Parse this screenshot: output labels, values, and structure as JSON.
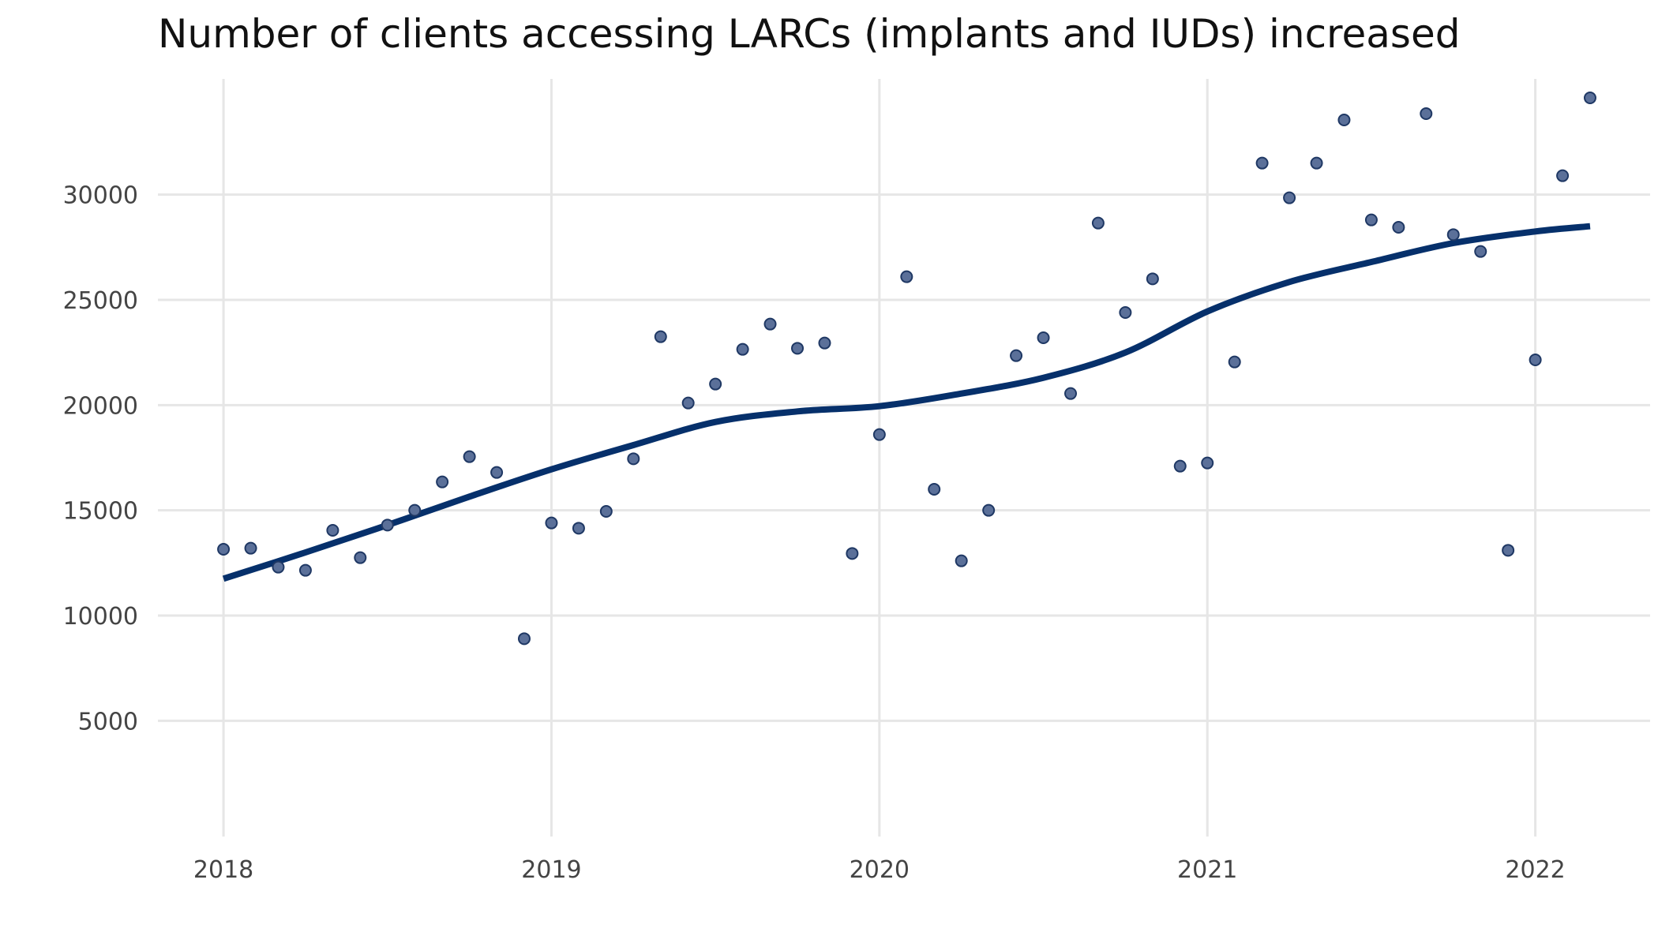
{
  "chart_data": {
    "type": "scatter",
    "title": "Number of clients accessing LARCs (implants and IUDs) increased",
    "xlabel": "",
    "ylabel": "",
    "x_unit": "year",
    "xlim": [
      2017.8,
      2022.35
    ],
    "ylim": [
      -500,
      35500
    ],
    "x_ticks": [
      2018,
      2019,
      2020,
      2021,
      2022
    ],
    "x_tick_labels": [
      "2018",
      "2019",
      "2020",
      "2021",
      "2022"
    ],
    "y_ticks": [
      5000,
      10000,
      15000,
      20000,
      25000,
      30000
    ],
    "y_tick_labels": [
      "5000",
      "10000",
      "15000",
      "20000",
      "25000",
      "30000"
    ],
    "grid": true,
    "legend": "none",
    "colors": {
      "points": "#5b7099",
      "points_outline": "#1f3864",
      "trend": "#06306b",
      "grid": "#e6e6e6"
    },
    "series": [
      {
        "type": "scatter",
        "x": [
          2018.0,
          2018.083,
          2018.167,
          2018.25,
          2018.333,
          2018.417,
          2018.5,
          2018.583,
          2018.667,
          2018.75,
          2018.833,
          2018.917,
          2019.0,
          2019.083,
          2019.167,
          2019.25,
          2019.333,
          2019.417,
          2019.5,
          2019.583,
          2019.667,
          2019.75,
          2019.833,
          2019.917,
          2020.0,
          2020.083,
          2020.167,
          2020.25,
          2020.333,
          2020.417,
          2020.5,
          2020.583,
          2020.667,
          2020.75,
          2020.833,
          2020.917,
          2021.0,
          2021.083,
          2021.167,
          2021.25,
          2021.333,
          2021.417,
          2021.5,
          2021.583,
          2021.667,
          2021.75,
          2021.833,
          2021.917,
          2022.0,
          2022.083,
          2022.167
        ],
        "y": [
          13150,
          13200,
          12300,
          12150,
          14050,
          12750,
          14300,
          15000,
          16350,
          17550,
          16800,
          8900,
          14400,
          14150,
          14950,
          17450,
          23250,
          20100,
          21000,
          22650,
          23850,
          22700,
          22950,
          12950,
          18600,
          26100,
          16000,
          12600,
          15000,
          22350,
          23200,
          20550,
          28650,
          24400,
          26000,
          17100,
          17250,
          22050,
          31500,
          29850,
          31500,
          33550,
          28800,
          28450,
          33850,
          28100,
          27300,
          13100,
          22150,
          30900,
          34600
        ]
      },
      {
        "type": "line",
        "x": [
          2018.0,
          2018.25,
          2018.5,
          2018.75,
          2019.0,
          2019.25,
          2019.5,
          2019.75,
          2020.0,
          2020.25,
          2020.5,
          2020.75,
          2021.0,
          2021.25,
          2021.5,
          2021.75,
          2022.0,
          2022.167
        ],
        "y": [
          11750,
          13000,
          14300,
          15650,
          16950,
          18100,
          19200,
          19700,
          19950,
          20550,
          21300,
          22500,
          24450,
          25850,
          26800,
          27700,
          28250,
          28500
        ]
      }
    ]
  }
}
